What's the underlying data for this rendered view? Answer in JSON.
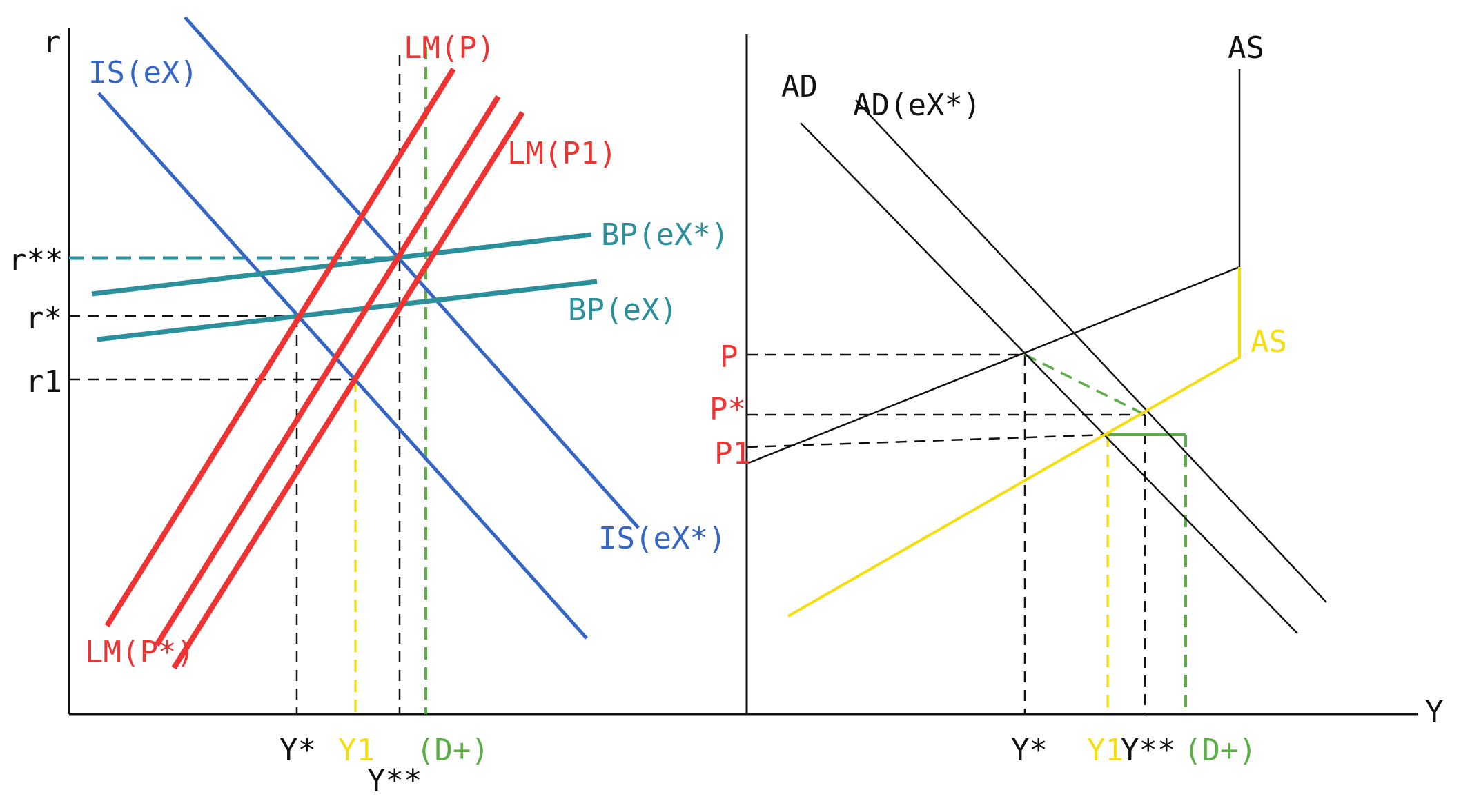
{
  "colors": {
    "axis": "#111111",
    "red": "#ee3333",
    "blue": "#3566c4",
    "teal": "#2b8f9c",
    "yellow": "#f5de10",
    "green": "#5aae45",
    "black": "#111111"
  },
  "left_panel": {
    "y_axis_label": "r",
    "rate_ticks": [
      "r**",
      "r*",
      "r1"
    ],
    "output_ticks": [
      "Y*",
      "Y1",
      "(D+)",
      "Y**"
    ],
    "curves": {
      "is_ex": "IS(eX)",
      "is_ex_star": "IS(eX*)",
      "lm_p": "LM(P)",
      "lm_p1": "LM(P1)",
      "lm_p_star": "LM(P*)",
      "bp_ex_star": "BP(eX*)",
      "bp_ex": "BP(eX)"
    }
  },
  "right_panel": {
    "x_axis_label": "Y",
    "price_ticks": [
      "P",
      "P*",
      "P1"
    ],
    "output_ticks": [
      "Y*",
      "Y1",
      "Y**",
      "(D+)"
    ],
    "curves": {
      "ad": "AD",
      "ad_ex_star": "AD(eX*)",
      "as_black": "AS",
      "as_yellow": "AS"
    }
  }
}
